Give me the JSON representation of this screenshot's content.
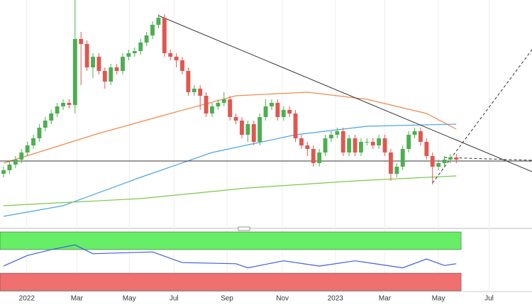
{
  "chart_data": [
    {
      "type": "candlestick",
      "xlim": [
        -0.6,
        88.7
      ],
      "ylim": [
        0,
        320
      ],
      "grid": true,
      "xticks": [
        {
          "value": 3.9,
          "label": "2022"
        },
        {
          "value": 12.3,
          "label": "Mar"
        },
        {
          "value": 21.1,
          "label": "May"
        },
        {
          "value": 28.6,
          "label": "Jul"
        },
        {
          "value": 37.5,
          "label": "Sep"
        },
        {
          "value": 46.8,
          "label": "Nov"
        },
        {
          "value": 55.7,
          "label": "2023"
        },
        {
          "value": 64,
          "label": "Mar"
        },
        {
          "value": 73,
          "label": "May"
        },
        {
          "value": 81.5,
          "label": "Jul"
        }
      ],
      "up_color": "#4caf50",
      "down_color": "#e0574f",
      "open": [
        75,
        80,
        88,
        95,
        105,
        115,
        125,
        140,
        150,
        160,
        170,
        175,
        172,
        265,
        258,
        225,
        240,
        220,
        205,
        225,
        220,
        240,
        245,
        248,
        260,
        270,
        285,
        295,
        245,
        240,
        235,
        220,
        190,
        195,
        185,
        160,
        170,
        175,
        180,
        155,
        150,
        130,
        145,
        120,
        155,
        170,
        175,
        155,
        165,
        160,
        125,
        115,
        110,
        90,
        105,
        125,
        130,
        135,
        105,
        125,
        105,
        120,
        120,
        115,
        125,
        105,
        75,
        85,
        110,
        130,
        135,
        120,
        100,
        85,
        90,
        95,
        98
      ],
      "high": [
        85,
        93,
        100,
        110,
        120,
        130,
        145,
        155,
        165,
        175,
        180,
        180,
        320,
        275,
        263,
        245,
        245,
        225,
        230,
        230,
        245,
        250,
        253,
        265,
        275,
        290,
        300,
        300,
        250,
        245,
        240,
        225,
        200,
        200,
        190,
        175,
        180,
        190,
        185,
        160,
        155,
        150,
        150,
        160,
        180,
        180,
        180,
        170,
        170,
        165,
        130,
        120,
        115,
        110,
        130,
        135,
        140,
        140,
        130,
        130,
        125,
        125,
        125,
        130,
        130,
        110,
        90,
        115,
        135,
        140,
        140,
        125,
        105,
        95,
        100,
        103,
        103
      ],
      "low": [
        70,
        75,
        83,
        90,
        100,
        110,
        120,
        135,
        145,
        155,
        165,
        167,
        160,
        200,
        220,
        210,
        215,
        195,
        200,
        215,
        215,
        235,
        240,
        243,
        255,
        265,
        280,
        240,
        235,
        225,
        215,
        185,
        185,
        165,
        155,
        155,
        165,
        170,
        150,
        145,
        125,
        120,
        115,
        115,
        150,
        165,
        150,
        150,
        155,
        120,
        110,
        100,
        85,
        85,
        100,
        120,
        125,
        100,
        100,
        100,
        100,
        115,
        110,
        110,
        100,
        65,
        70,
        80,
        105,
        125,
        115,
        95,
        60,
        80,
        85,
        90,
        90
      ],
      "close": [
        80,
        88,
        95,
        105,
        115,
        125,
        140,
        150,
        160,
        170,
        175,
        172,
        265,
        258,
        225,
        240,
        220,
        205,
        225,
        220,
        240,
        245,
        248,
        260,
        270,
        285,
        295,
        245,
        240,
        235,
        220,
        190,
        195,
        185,
        160,
        170,
        175,
        180,
        155,
        150,
        130,
        145,
        120,
        155,
        170,
        175,
        155,
        165,
        160,
        125,
        115,
        110,
        90,
        105,
        125,
        130,
        135,
        105,
        125,
        105,
        120,
        120,
        115,
        125,
        105,
        75,
        85,
        110,
        130,
        135,
        120,
        100,
        85,
        90,
        95,
        98,
        95
      ],
      "series": [
        {
          "color": "#f08a4b",
          "x": [
            0,
            16,
            28,
            39,
            51,
            61,
            71,
            76
          ],
          "values": [
            90,
            132,
            160,
            185,
            190,
            180,
            160,
            138
          ]
        },
        {
          "color": "#4aa3e8",
          "x": [
            0,
            10,
            23,
            35,
            49,
            61,
            76
          ],
          "values": [
            15,
            30,
            70,
            105,
            130,
            142,
            145
          ]
        },
        {
          "color": "#7bc84a",
          "x": [
            0,
            23,
            41,
            59,
            76
          ],
          "values": [
            30,
            40,
            55,
            65,
            72
          ]
        }
      ],
      "lines": [
        {
          "color": "#333333",
          "dash": false,
          "x": [
            -0.6,
            88.7
          ],
          "values": [
            93,
            93
          ]
        },
        {
          "color": "#333333",
          "dash": false,
          "x": [
            26,
            88.7
          ],
          "values": [
            298,
            78
          ]
        },
        {
          "color": "#333333",
          "dash": true,
          "x": [
            72,
            88.7
          ],
          "values": [
            62,
            250
          ]
        },
        {
          "color": "#333333",
          "dash": true,
          "x": [
            74,
            88.7
          ],
          "values": [
            98,
            94
          ]
        }
      ]
    },
    {
      "type": "line",
      "xlim": [
        -0.6,
        88.7
      ],
      "ylim": [
        0,
        100
      ],
      "bands": [
        {
          "range": [
            70,
            100
          ],
          "color": "#66ee66"
        },
        {
          "range": [
            0,
            30
          ],
          "color": "#f07070"
        }
      ],
      "band_end": 76.8,
      "series": [
        {
          "color": "#3d5ee0",
          "x": [
            0,
            4,
            8,
            12,
            15,
            25,
            30,
            39,
            41,
            47,
            53,
            59,
            67,
            71,
            74,
            76
          ],
          "values": [
            42,
            60,
            70,
            78,
            63,
            66,
            48,
            46,
            39,
            51,
            42,
            51,
            39,
            54,
            43,
            46
          ]
        }
      ]
    }
  ]
}
